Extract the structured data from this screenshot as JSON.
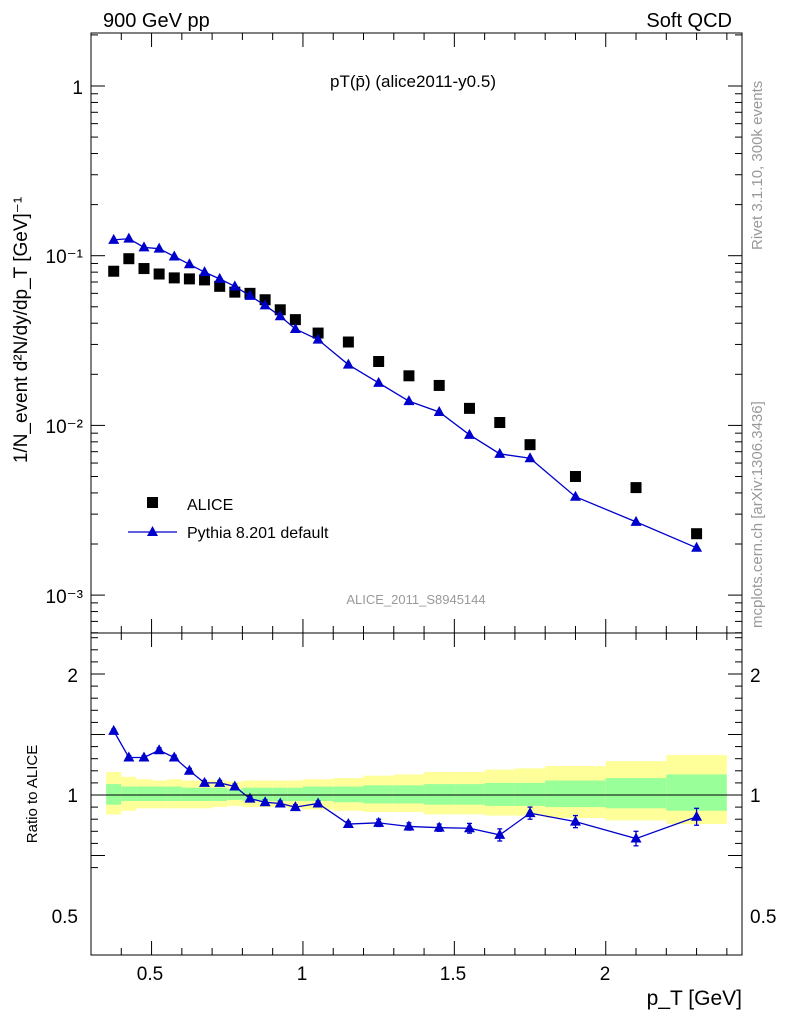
{
  "header": {
    "left": "900 GeV pp",
    "right": "Soft QCD"
  },
  "side_labels": {
    "top": "Rivet 3.1.10,  300k events",
    "bottom": "mcplots.cern.ch [arXiv:1306.3436]"
  },
  "chart_data": [
    {
      "type": "scatter",
      "title": "pT(p̄) (alice2011-y0.5)",
      "ylabel": "1/N_event d²N/dy/dp_T [GeV]⁻¹",
      "yscale": "log",
      "ylim": [
        0.00062,
        2.0
      ],
      "xlim": [
        0.3,
        2.45
      ],
      "yticks_labels": [
        "1",
        "10⁻¹",
        "10⁻²",
        "10⁻³"
      ],
      "watermark": "ALICE_2011_S8945144",
      "legend": {
        "placement": "bottom-left"
      },
      "series": [
        {
          "name": "ALICE",
          "marker": "square",
          "color": "#000000",
          "x": [
            0.375,
            0.425,
            0.475,
            0.525,
            0.575,
            0.625,
            0.675,
            0.725,
            0.775,
            0.825,
            0.875,
            0.925,
            0.975,
            1.05,
            1.15,
            1.25,
            1.35,
            1.45,
            1.55,
            1.65,
            1.75,
            1.9,
            2.1,
            2.3
          ],
          "y": [
            0.081,
            0.096,
            0.084,
            0.078,
            0.074,
            0.073,
            0.072,
            0.066,
            0.061,
            0.06,
            0.055,
            0.048,
            0.042,
            0.035,
            0.031,
            0.0238,
            0.0196,
            0.0172,
            0.0126,
            0.0104,
            0.0077,
            0.005,
            0.0043,
            0.0023
          ]
        },
        {
          "name": "Pythia 8.201 default",
          "marker": "triangle",
          "color": "#0000cc",
          "x": [
            0.375,
            0.425,
            0.475,
            0.525,
            0.575,
            0.625,
            0.675,
            0.725,
            0.775,
            0.825,
            0.875,
            0.925,
            0.975,
            1.05,
            1.15,
            1.25,
            1.35,
            1.45,
            1.55,
            1.65,
            1.75,
            1.9,
            2.1,
            2.3
          ],
          "y": [
            0.124,
            0.126,
            0.112,
            0.11,
            0.099,
            0.089,
            0.08,
            0.073,
            0.066,
            0.058,
            0.051,
            0.044,
            0.037,
            0.032,
            0.0228,
            0.0178,
            0.0139,
            0.012,
            0.0088,
            0.0068,
            0.0064,
            0.0038,
            0.0027,
            0.0019
          ]
        }
      ]
    },
    {
      "type": "scatter",
      "xlabel": "p_T [GeV]",
      "ylabel": "Ratio to ALICE",
      "xlim": [
        0.3,
        2.45
      ],
      "ylim": [
        0.34,
        2.4
      ],
      "xticks_labels": [
        "0.5",
        "1",
        "1.5",
        "2"
      ],
      "yticks_labels": [
        "0.5",
        "1",
        "2"
      ],
      "reference_line": 1.0,
      "bands": {
        "edges": [
          0.35,
          0.4,
          0.45,
          0.5,
          0.55,
          0.6,
          0.65,
          0.7,
          0.75,
          0.8,
          0.85,
          0.9,
          0.95,
          1.0,
          1.1,
          1.2,
          1.3,
          1.4,
          1.5,
          1.6,
          1.7,
          1.8,
          2.0,
          2.2,
          2.4
        ],
        "green_color": "#99ff99",
        "yellow_color": "#ffff99",
        "green_up": [
          1.09,
          1.07,
          1.07,
          1.07,
          1.07,
          1.06,
          1.06,
          1.06,
          1.05,
          1.06,
          1.06,
          1.06,
          1.06,
          1.07,
          1.07,
          1.08,
          1.08,
          1.09,
          1.09,
          1.1,
          1.1,
          1.12,
          1.14,
          1.17
        ],
        "green_down": [
          0.92,
          0.95,
          0.95,
          0.95,
          0.95,
          0.95,
          0.95,
          0.95,
          0.96,
          0.95,
          0.95,
          0.95,
          0.95,
          0.95,
          0.94,
          0.93,
          0.93,
          0.92,
          0.92,
          0.91,
          0.91,
          0.9,
          0.89,
          0.87
        ],
        "yellow_up": [
          1.19,
          1.15,
          1.13,
          1.12,
          1.13,
          1.12,
          1.12,
          1.12,
          1.11,
          1.12,
          1.12,
          1.12,
          1.12,
          1.13,
          1.14,
          1.16,
          1.17,
          1.19,
          1.19,
          1.21,
          1.22,
          1.24,
          1.28,
          1.33
        ],
        "yellow_down": [
          0.84,
          0.87,
          0.89,
          0.89,
          0.89,
          0.89,
          0.89,
          0.9,
          0.91,
          0.9,
          0.9,
          0.9,
          0.89,
          0.88,
          0.87,
          0.86,
          0.86,
          0.84,
          0.84,
          0.83,
          0.83,
          0.81,
          0.79,
          0.76
        ]
      },
      "series": [
        {
          "name": "Pythia 8.201 default",
          "marker": "triangle",
          "color": "#0000cc",
          "x": [
            0.375,
            0.425,
            0.475,
            0.525,
            0.575,
            0.625,
            0.675,
            0.725,
            0.775,
            0.825,
            0.875,
            0.925,
            0.975,
            1.05,
            1.15,
            1.25,
            1.35,
            1.45,
            1.55,
            1.65,
            1.75,
            1.9,
            2.1,
            2.3
          ],
          "y": [
            1.53,
            1.31,
            1.31,
            1.37,
            1.31,
            1.2,
            1.1,
            1.1,
            1.07,
            0.97,
            0.94,
            0.93,
            0.9,
            0.93,
            0.76,
            0.77,
            0.74,
            0.73,
            0.725,
            0.67,
            0.85,
            0.78,
            0.64,
            0.82
          ],
          "err": [
            0.015,
            0.015,
            0.015,
            0.02,
            0.02,
            0.02,
            0.02,
            0.02,
            0.02,
            0.02,
            0.02,
            0.02,
            0.02,
            0.02,
            0.02,
            0.03,
            0.03,
            0.03,
            0.04,
            0.05,
            0.05,
            0.05,
            0.06,
            0.07
          ]
        }
      ]
    }
  ]
}
